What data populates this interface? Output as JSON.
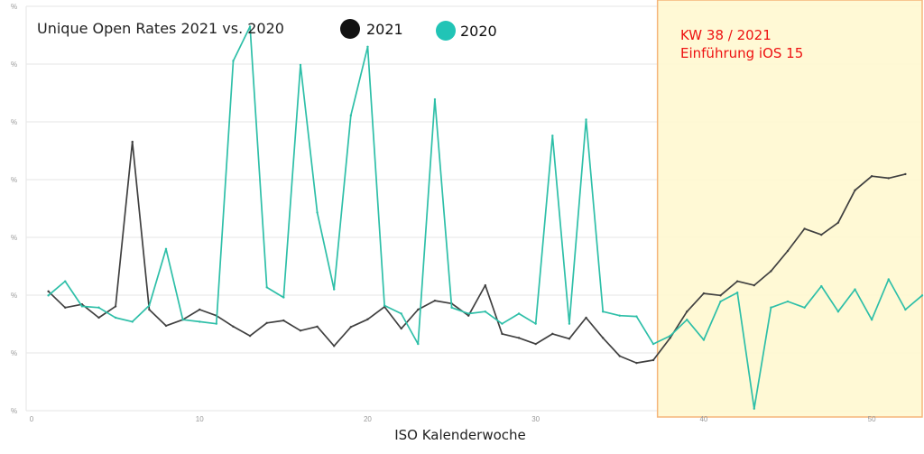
{
  "chart_data": {
    "type": "line",
    "title": "Unique Open Rates 2021 vs. 2020",
    "xlabel": "ISO Kalenderwoche",
    "ylabel": "",
    "xlim": [
      0,
      53
    ],
    "x_ticks": [
      0,
      10,
      20,
      30,
      40,
      50
    ],
    "y_tick_label": "%",
    "y_tick_count": 8,
    "grid": "horizontal",
    "legend_placement": "top",
    "series": [
      {
        "name": "2021",
        "color": "#404040",
        "legend_color": "#111111",
        "x": [
          1,
          2,
          3,
          4,
          5,
          6,
          7,
          8,
          9,
          10,
          11,
          12,
          13,
          14,
          15,
          16,
          17,
          18,
          19,
          20,
          21,
          22,
          23,
          24,
          25,
          26,
          27,
          28,
          29,
          30,
          31,
          32,
          33,
          34,
          35,
          36,
          37,
          38,
          39,
          40,
          41,
          42,
          43,
          44,
          45,
          46,
          47,
          48,
          49,
          50,
          51,
          52
        ],
        "values": [
          29.5,
          25.5,
          26.3,
          23,
          25.8,
          66.5,
          25,
          21,
          22.5,
          25,
          23.5,
          20.8,
          18.5,
          21.7,
          22.3,
          19.8,
          20.8,
          16,
          20.7,
          22.6,
          25.7,
          20.3,
          25,
          27.2,
          26.5,
          23.5,
          31,
          19,
          18,
          16.5,
          19,
          17.8,
          23,
          18,
          13.5,
          11.8,
          12.5,
          18,
          24.5,
          29,
          28.5,
          32,
          31,
          34.5,
          39.5,
          45,
          43.5,
          46.5,
          54.5,
          58,
          57.5,
          58.5
        ]
      },
      {
        "name": "2020",
        "color": "#2ebfa8",
        "legend_color": "#21c4b6",
        "x": [
          1,
          2,
          3,
          4,
          5,
          6,
          7,
          8,
          9,
          10,
          11,
          12,
          13,
          14,
          15,
          16,
          17,
          18,
          19,
          20,
          21,
          22,
          23,
          24,
          25,
          26,
          27,
          28,
          29,
          30,
          31,
          32,
          33,
          34,
          35,
          36,
          37,
          38,
          39,
          40,
          41,
          42,
          43,
          44,
          45,
          46,
          47,
          48,
          49,
          50,
          51,
          52,
          53
        ],
        "values": [
          28.5,
          32,
          25.8,
          25.5,
          23,
          22,
          26,
          40,
          22.5,
          22,
          21.5,
          86.5,
          95,
          30.5,
          28,
          85.5,
          49,
          30,
          73,
          90,
          26,
          24,
          16.5,
          77,
          25.5,
          24,
          24.5,
          21.5,
          24,
          21.5,
          68,
          21.5,
          72,
          24.5,
          23.5,
          23.3,
          16.5,
          18.5,
          22.5,
          17.5,
          27,
          29.2,
          0.5,
          25.5,
          27,
          25.5,
          30.8,
          24.5,
          30,
          22.5,
          32.5,
          25,
          28.5
        ]
      }
    ],
    "highlight": {
      "x_from": 38,
      "x_to": 53,
      "fill": "#fff8d0",
      "border": "#f5b57a",
      "annotation_lines": [
        "KW 38 / 2021",
        "Einführung iOS 15"
      ],
      "annotation_color": "#ee1111"
    }
  }
}
